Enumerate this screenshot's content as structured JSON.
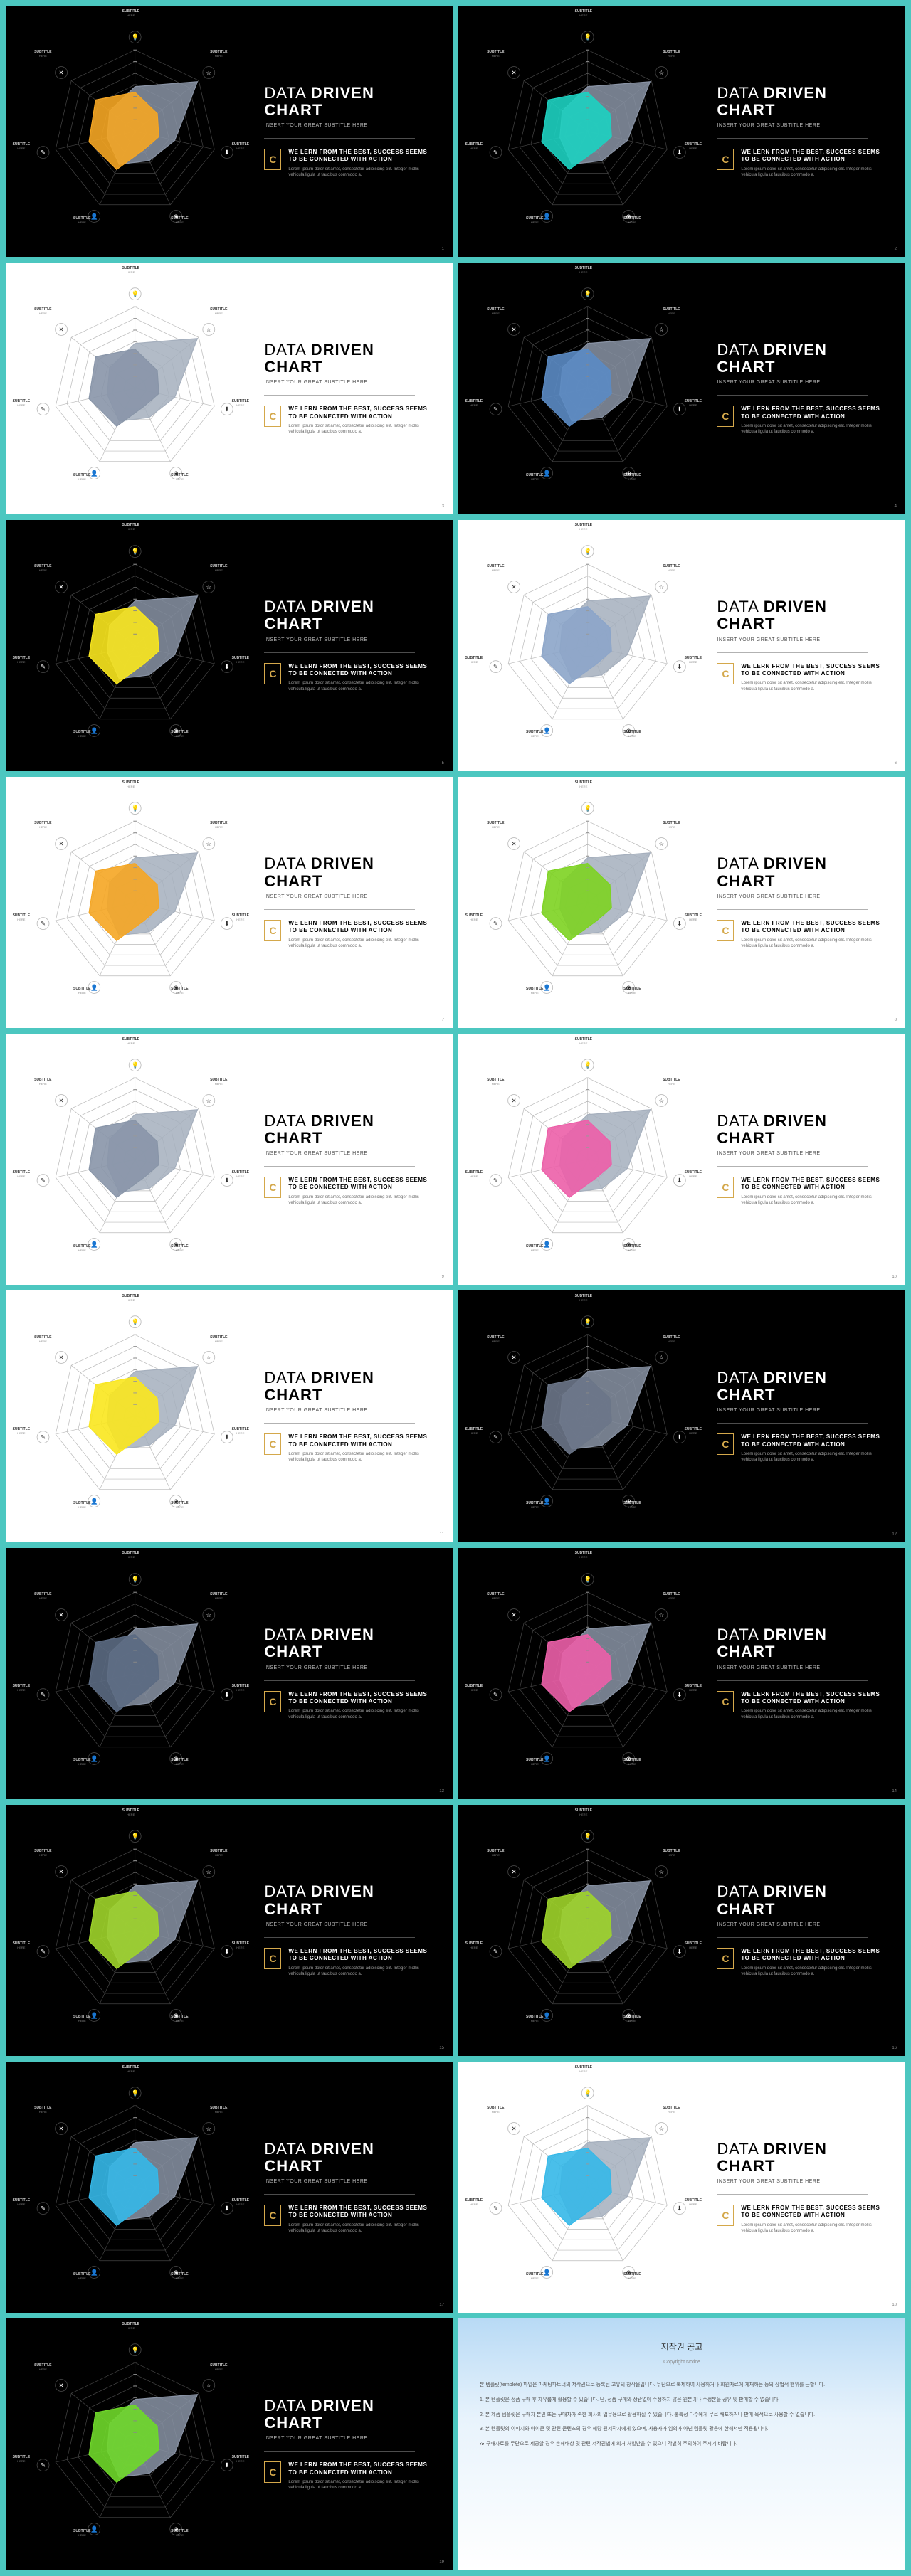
{
  "page_bg": "#4cc7c0",
  "title_line1": "DATA",
  "title_line2": "DRIVEN",
  "title_line3": "CHART",
  "subtitle": "INSERT YOUR GREAT SUBTITLE HERE",
  "callout_head": "WE LERN FROM THE BEST, SUCCESS SEEMS TO BE CONNECTED WITH ACTION",
  "callout_body": "Lorem ipsum dolor sit amet, consectetur adipiscing elit. Integer mollis vehicula ligula ut faucibus commodo a.",
  "callout_icon": "C",
  "axis_label": "SUBTITLE",
  "axis_sub": "HERE",
  "axis_icons": [
    "💡",
    "☆",
    "⬇",
    "⊕",
    "👤",
    "✎",
    "✕"
  ],
  "radar": {
    "n_axes": 7,
    "rings": 7,
    "series_grey": [
      55,
      98,
      50,
      40,
      45,
      35,
      40
    ],
    "series_color": [
      48,
      35,
      30,
      25,
      52,
      58,
      62
    ]
  },
  "slides": [
    {
      "bg": "dark",
      "color": "#f5a623"
    },
    {
      "bg": "dark",
      "color": "#1dd1c1"
    },
    {
      "bg": "light",
      "color": "#8895a8"
    },
    {
      "bg": "dark",
      "color": "#5b8bc4"
    },
    {
      "bg": "dark",
      "color": "#f9e71e"
    },
    {
      "bg": "light",
      "color": "#8ca5c9"
    },
    {
      "bg": "light",
      "color": "#f5a623"
    },
    {
      "bg": "light",
      "color": "#7dd321"
    },
    {
      "bg": "light",
      "color": "#8895a8"
    },
    {
      "bg": "light",
      "color": "#ec5fa8"
    },
    {
      "bg": "light",
      "color": "#f9e71e"
    },
    {
      "bg": "dark",
      "color": "#6b7688"
    },
    {
      "bg": "dark",
      "color": "#5b6a82"
    },
    {
      "bg": "dark",
      "color": "#ec5fa8"
    },
    {
      "bg": "dark",
      "color": "#9ed42a"
    },
    {
      "bg": "dark",
      "color": "#9ed42a"
    },
    {
      "bg": "dark",
      "color": "#35b8e8"
    },
    {
      "bg": "light",
      "color": "#35b8e8"
    },
    {
      "bg": "dark",
      "color": "#6fd82a"
    }
  ],
  "copyright": {
    "title": "저작권 공고",
    "sub": "Copyright Notice",
    "lines": [
      "본 템플릿(templete) 파일은 마케팅파트너의 저작권으로 등록된 고유의 창작물입니다. 무단으로 복제하여 사용하거나 회원자료에 게재하는 등의 상업적 행위를 금합니다.",
      "1. 본 템플릿은 정품 구매 후 자유롭게 활용할 수 있습니다. 단, 정품 구매와 상관없이 수정하지 않은 원본이나 수정본을 공유 및 판매할 수 없습니다.",
      "2. 본 제품 템플릿은 구매자 본인 또는 구매자가 속한 회사의 업무용으로 활용하실 수 있습니다. 불특정 다수에게 무료 배포하거나 판매 목적으로 사용할 수 없습니다.",
      "3. 본 템플릿의 이미지와 아이콘 및 관련 콘텐츠의 경우 해당 원저작자에게 있으며, 사용자가 임의가 아닌 템플릿 활용에 한해서만 적용됩니다.",
      "※ 구매자료를 무단으로 제공할 경우 손해배상 및 관련 저작권법에 의거 처벌받을 수 있으니 각별히 주의하여 주시기 바랍니다."
    ]
  }
}
